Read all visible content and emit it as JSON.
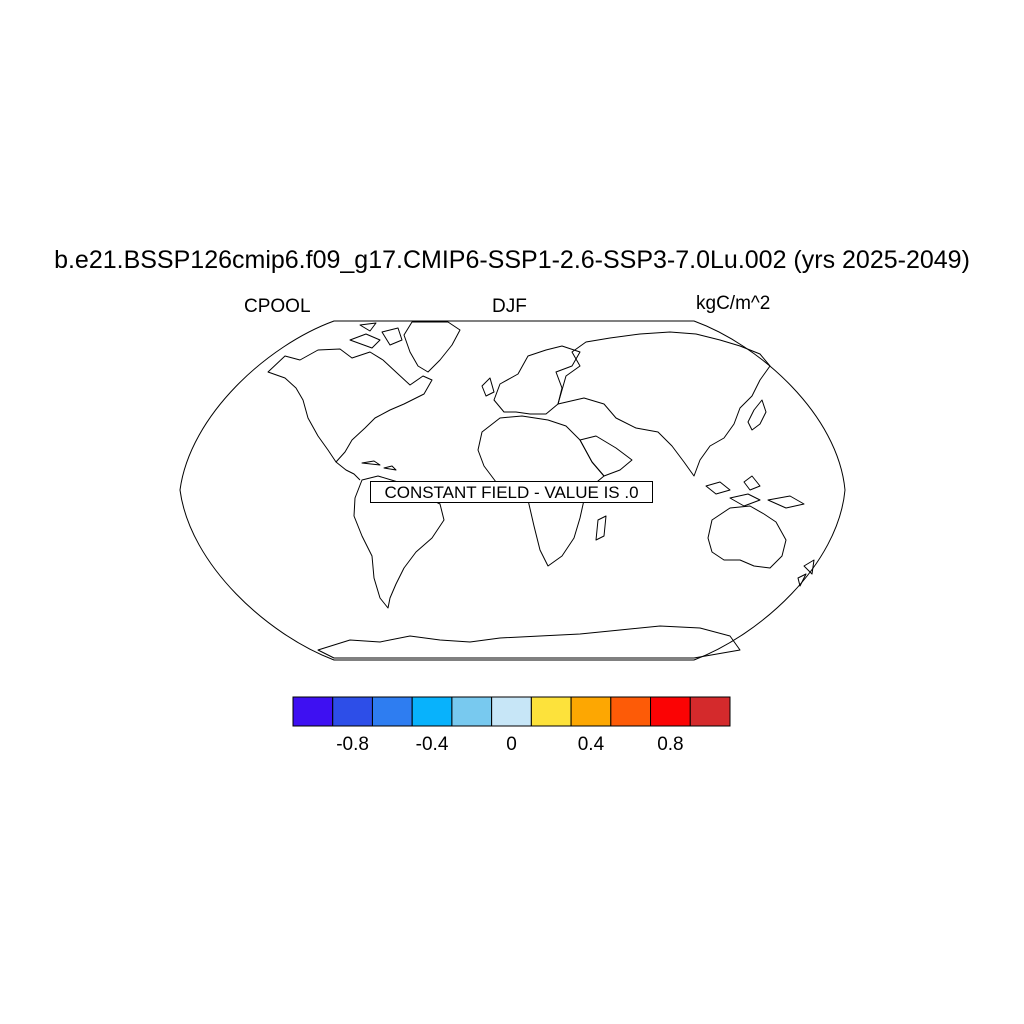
{
  "title": "b.e21.BSSP126cmip6.f09_g17.CMIP6-SSP1-2.6-SSP3-7.0Lu.002 (yrs 2025-2049)",
  "left_label": "CPOOL",
  "center_label": "DJF",
  "right_label": "kgC/m^2",
  "map_message": "CONSTANT FIELD - VALUE IS .0",
  "colorbar": {
    "colors": [
      "#3e10f2",
      "#2d4ee8",
      "#2e7df1",
      "#08b2fc",
      "#78c9ef",
      "#c7e6f7",
      "#fde23b",
      "#fda702",
      "#fd5b07",
      "#fb0304",
      "#d42a2c"
    ],
    "tick_labels": [
      "-0.8",
      "-0.4",
      "0",
      "0.4",
      "0.8"
    ],
    "tick_values": [
      -0.8,
      -0.4,
      0,
      0.4,
      0.8
    ],
    "levels": [
      -1.0,
      -0.8,
      -0.6,
      -0.4,
      -0.2,
      0,
      0.2,
      0.4,
      0.6,
      0.8,
      1.0
    ]
  }
}
